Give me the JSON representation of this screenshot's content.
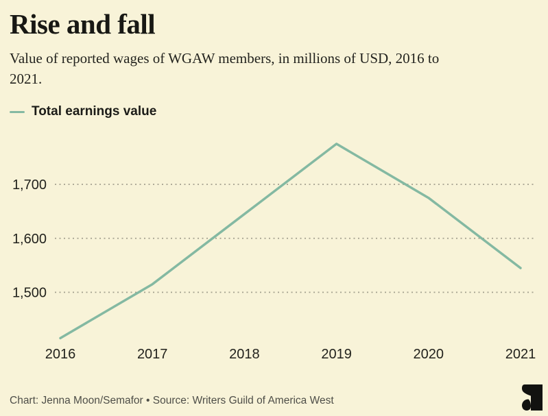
{
  "page": {
    "background_color": "#f8f3d8",
    "accent_color": "#84b9a2"
  },
  "header": {
    "title": "Rise and fall",
    "subtitle": "Value of reported wages of WGAW members, in millions of USD, 2016 to\n2021."
  },
  "legend": {
    "label": "Total earnings value",
    "swatch_color": "#84b9a2"
  },
  "chart_data": {
    "type": "line",
    "title": "Rise and fall",
    "subtitle": "Value of reported wages of WGAW members, in millions of USD, 2016 to 2021.",
    "x": [
      "2016",
      "2017",
      "2018",
      "2019",
      "2020",
      "2021"
    ],
    "series": [
      {
        "name": "Total earnings value",
        "values": [
          1415,
          1515,
          1645,
          1775,
          1675,
          1545
        ],
        "color": "#84b9a2"
      }
    ],
    "xlabel": "",
    "ylabel": "",
    "yticks": [
      {
        "value": 1500,
        "label": "1,500"
      },
      {
        "value": 1600,
        "label": "1,600"
      },
      {
        "value": 1700,
        "label": "1,700"
      }
    ],
    "ylim": [
      1405,
      1790
    ],
    "grid": "horizontal-dotted",
    "gridline_color": "#a3a08e",
    "legend_position": "top-left"
  },
  "footer": {
    "credit": "Chart: Jenna Moon/Semafor • Source: Writers Guild of America West",
    "logo": "semafor-logo",
    "logo_color": "#121210"
  }
}
